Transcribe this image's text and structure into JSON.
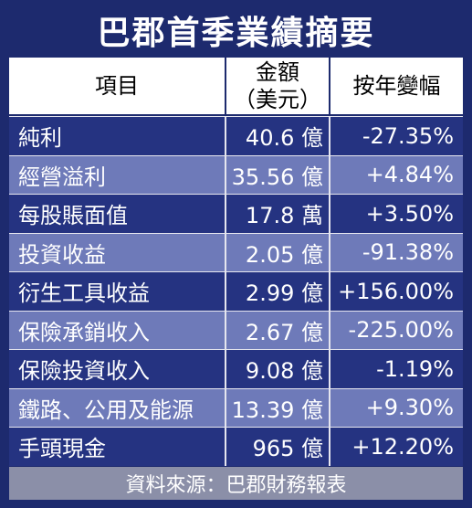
{
  "title": "巴郡首季業績摘要",
  "table": {
    "headers": {
      "item": "項目",
      "amount_line1": "金額",
      "amount_line2": "（美元）",
      "yoy": "按年變幅"
    },
    "rows": [
      {
        "item": "純利",
        "amount": "40.6 億",
        "yoy": "-27.35%"
      },
      {
        "item": "經營溢利",
        "amount": "35.56 億",
        "yoy": "+4.84%"
      },
      {
        "item": "每股賬面值",
        "amount": "17.8 萬",
        "yoy": "+3.50%"
      },
      {
        "item": "投資收益",
        "amount": "2.05 億",
        "yoy": "-91.38%"
      },
      {
        "item": "衍生工具收益",
        "amount": "2.99 億",
        "yoy": "+156.00%"
      },
      {
        "item": "保險承銷收入",
        "amount": "2.67 億",
        "yoy": "-225.00%"
      },
      {
        "item": "保險投資收入",
        "amount": "9.08 億",
        "yoy": "-1.19%"
      },
      {
        "item": "鐵路、公用及能源",
        "amount": "13.39 億",
        "yoy": "+9.30%"
      },
      {
        "item": "手頭現金",
        "amount": "965 億",
        "yoy": "+12.20%"
      }
    ]
  },
  "footer": "資料來源：巴郡財務報表",
  "colors": {
    "frame": "#1d2a6e",
    "row_dark": "#253381",
    "row_light": "#6e7ab9",
    "footer": "#8b8fa8"
  }
}
